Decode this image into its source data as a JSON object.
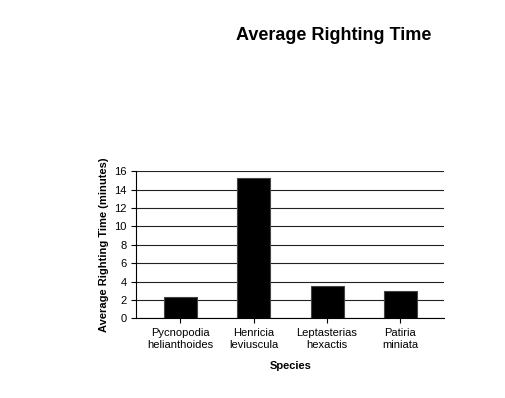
{
  "chart_data": {
    "type": "bar",
    "title": "Average Righting Time",
    "x_label": "Species",
    "y_label": "Average Righting Time (minutes)",
    "categories": [
      "Pycnopodia helianthoides",
      "Henricia leviuscula",
      "Leptasterias hexactis",
      "Patiria miniata"
    ],
    "values": [
      2.3,
      15.3,
      3.5,
      3.0
    ],
    "color": "#000000",
    "ylim": [
      0,
      16
    ],
    "yticks": [
      0,
      2,
      4,
      6,
      8,
      10,
      12,
      14,
      16
    ],
    "grid": true
  }
}
